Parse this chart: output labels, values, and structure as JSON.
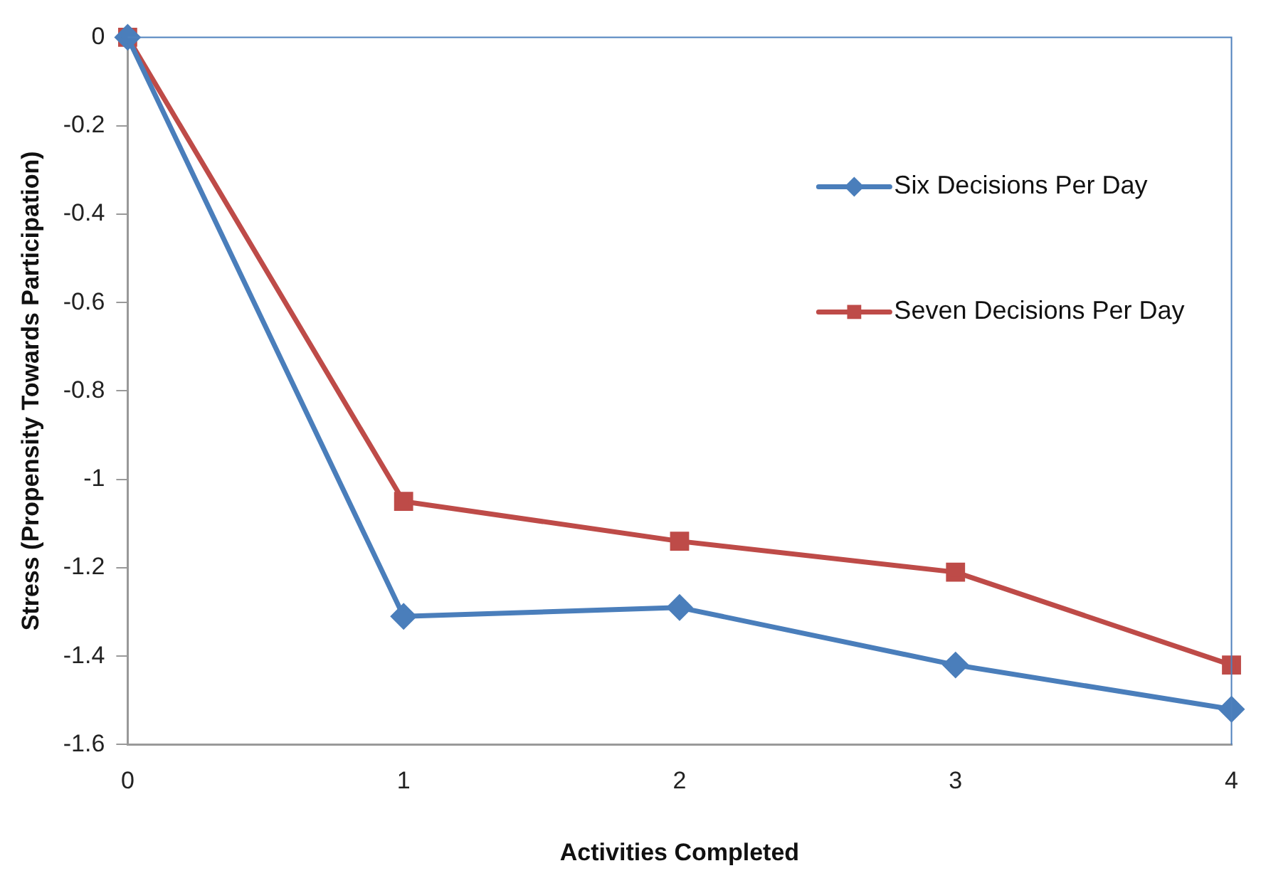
{
  "chart_data": {
    "type": "line",
    "xlabel": "Activities Completed",
    "ylabel": "Stress (Propensity Towards Participation)",
    "x": [
      0,
      1,
      2,
      3,
      4
    ],
    "series": [
      {
        "name": "Six Decisions Per Day",
        "color": "#4a7ebb",
        "marker": "diamond",
        "values": [
          0,
          -1.31,
          -1.29,
          -1.42,
          -1.52
        ]
      },
      {
        "name": "Seven Decisions Per Day",
        "color": "#be4b48",
        "marker": "square",
        "values": [
          0,
          -1.05,
          -1.14,
          -1.21,
          -1.42
        ]
      }
    ],
    "xlim": [
      0,
      4
    ],
    "xticks": [
      0,
      1,
      2,
      3,
      4
    ],
    "ylim": [
      -1.6,
      0
    ],
    "yticks": [
      0,
      -0.2,
      -0.4,
      -0.6,
      -0.8,
      -1,
      -1.2,
      -1.4,
      -1.6
    ],
    "grid": false,
    "legend": "top right"
  }
}
